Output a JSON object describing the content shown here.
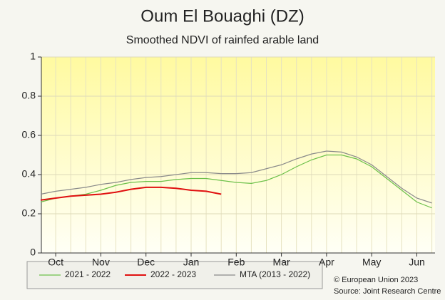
{
  "chart_data": {
    "type": "line",
    "title": "Oum El Bouaghi (DZ)",
    "subtitle": "Smoothed NDVI of rainfed arable land",
    "categories": [
      null,
      "Oct",
      null,
      null,
      "Nov",
      null,
      null,
      "Dec",
      null,
      null,
      "Jan",
      null,
      null,
      "Feb",
      null,
      null,
      "Mar",
      null,
      null,
      "Apr",
      null,
      null,
      "May",
      null,
      null,
      "Jun",
      null
    ],
    "series": [
      {
        "name": "2021 - 2022",
        "color": "#6cc04a",
        "values": [
          0.26,
          0.28,
          0.29,
          0.3,
          0.32,
          0.345,
          0.36,
          0.365,
          0.365,
          0.375,
          0.38,
          0.38,
          0.37,
          0.36,
          0.355,
          0.37,
          0.4,
          0.44,
          0.475,
          0.5,
          0.5,
          0.48,
          0.44,
          0.38,
          0.32,
          0.26,
          0.23
        ]
      },
      {
        "name": "2022 - 2023",
        "color": "#e01010",
        "values": [
          0.27,
          0.28,
          0.29,
          0.295,
          0.3,
          0.31,
          0.325,
          0.335,
          0.335,
          0.33,
          0.32,
          0.315,
          0.3,
          null,
          null,
          null,
          null,
          null,
          null,
          null,
          null,
          null,
          null,
          null,
          null,
          null,
          null
        ]
      },
      {
        "name": "MTA (2013 - 2022)",
        "color": "#8a8a8a",
        "values": [
          0.3,
          0.315,
          0.325,
          0.335,
          0.35,
          0.36,
          0.375,
          0.385,
          0.39,
          0.4,
          0.41,
          0.41,
          0.405,
          0.405,
          0.41,
          0.43,
          0.45,
          0.48,
          0.505,
          0.52,
          0.515,
          0.49,
          0.45,
          0.39,
          0.33,
          0.28,
          0.255
        ]
      }
    ],
    "ylim": [
      0,
      1
    ],
    "yticks": [
      0,
      0.2,
      0.4,
      0.6,
      0.8,
      1
    ],
    "grid": true,
    "footer": [
      "© European Union 2023",
      "Source: Joint Research Centre"
    ]
  }
}
